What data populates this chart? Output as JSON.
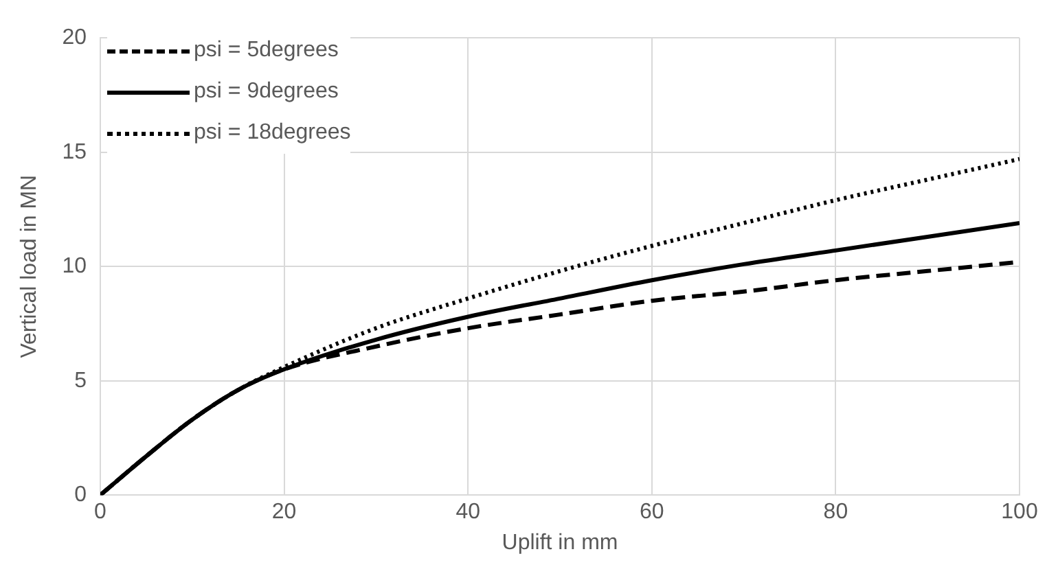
{
  "chart_data": {
    "type": "line",
    "xlabel": "Uplift in mm",
    "ylabel": "Vertical load in MN",
    "xlim": [
      0,
      100
    ],
    "ylim": [
      0,
      20
    ],
    "xticks": [
      0,
      20,
      40,
      60,
      80,
      100
    ],
    "yticks": [
      0,
      5,
      10,
      15,
      20
    ],
    "grid": true,
    "legend": "top left",
    "marker": "none",
    "series": [
      {
        "name": "psi = 5degrees",
        "color": "#000000",
        "line_style": "dashed",
        "x": [
          0,
          5,
          10,
          15,
          20,
          30,
          40,
          50,
          60,
          70,
          80,
          90,
          100
        ],
        "values": [
          0,
          1.7,
          3.3,
          4.6,
          5.5,
          6.5,
          7.3,
          7.9,
          8.5,
          8.9,
          9.4,
          9.8,
          10.2
        ]
      },
      {
        "name": "psi = 9degrees",
        "color": "#000000",
        "line_style": "solid",
        "x": [
          0,
          5,
          10,
          15,
          20,
          30,
          40,
          50,
          60,
          70,
          80,
          90,
          100
        ],
        "values": [
          0,
          1.7,
          3.3,
          4.6,
          5.5,
          6.8,
          7.8,
          8.6,
          9.4,
          10.1,
          10.7,
          11.3,
          11.9
        ]
      },
      {
        "name": "psi = 18degrees",
        "color": "#000000",
        "line_style": "dotted",
        "x": [
          0,
          5,
          10,
          15,
          20,
          30,
          40,
          50,
          60,
          70,
          80,
          90,
          100
        ],
        "values": [
          0,
          1.7,
          3.3,
          4.6,
          5.6,
          7.3,
          8.6,
          9.8,
          10.9,
          11.9,
          12.9,
          13.8,
          14.7
        ]
      }
    ]
  }
}
